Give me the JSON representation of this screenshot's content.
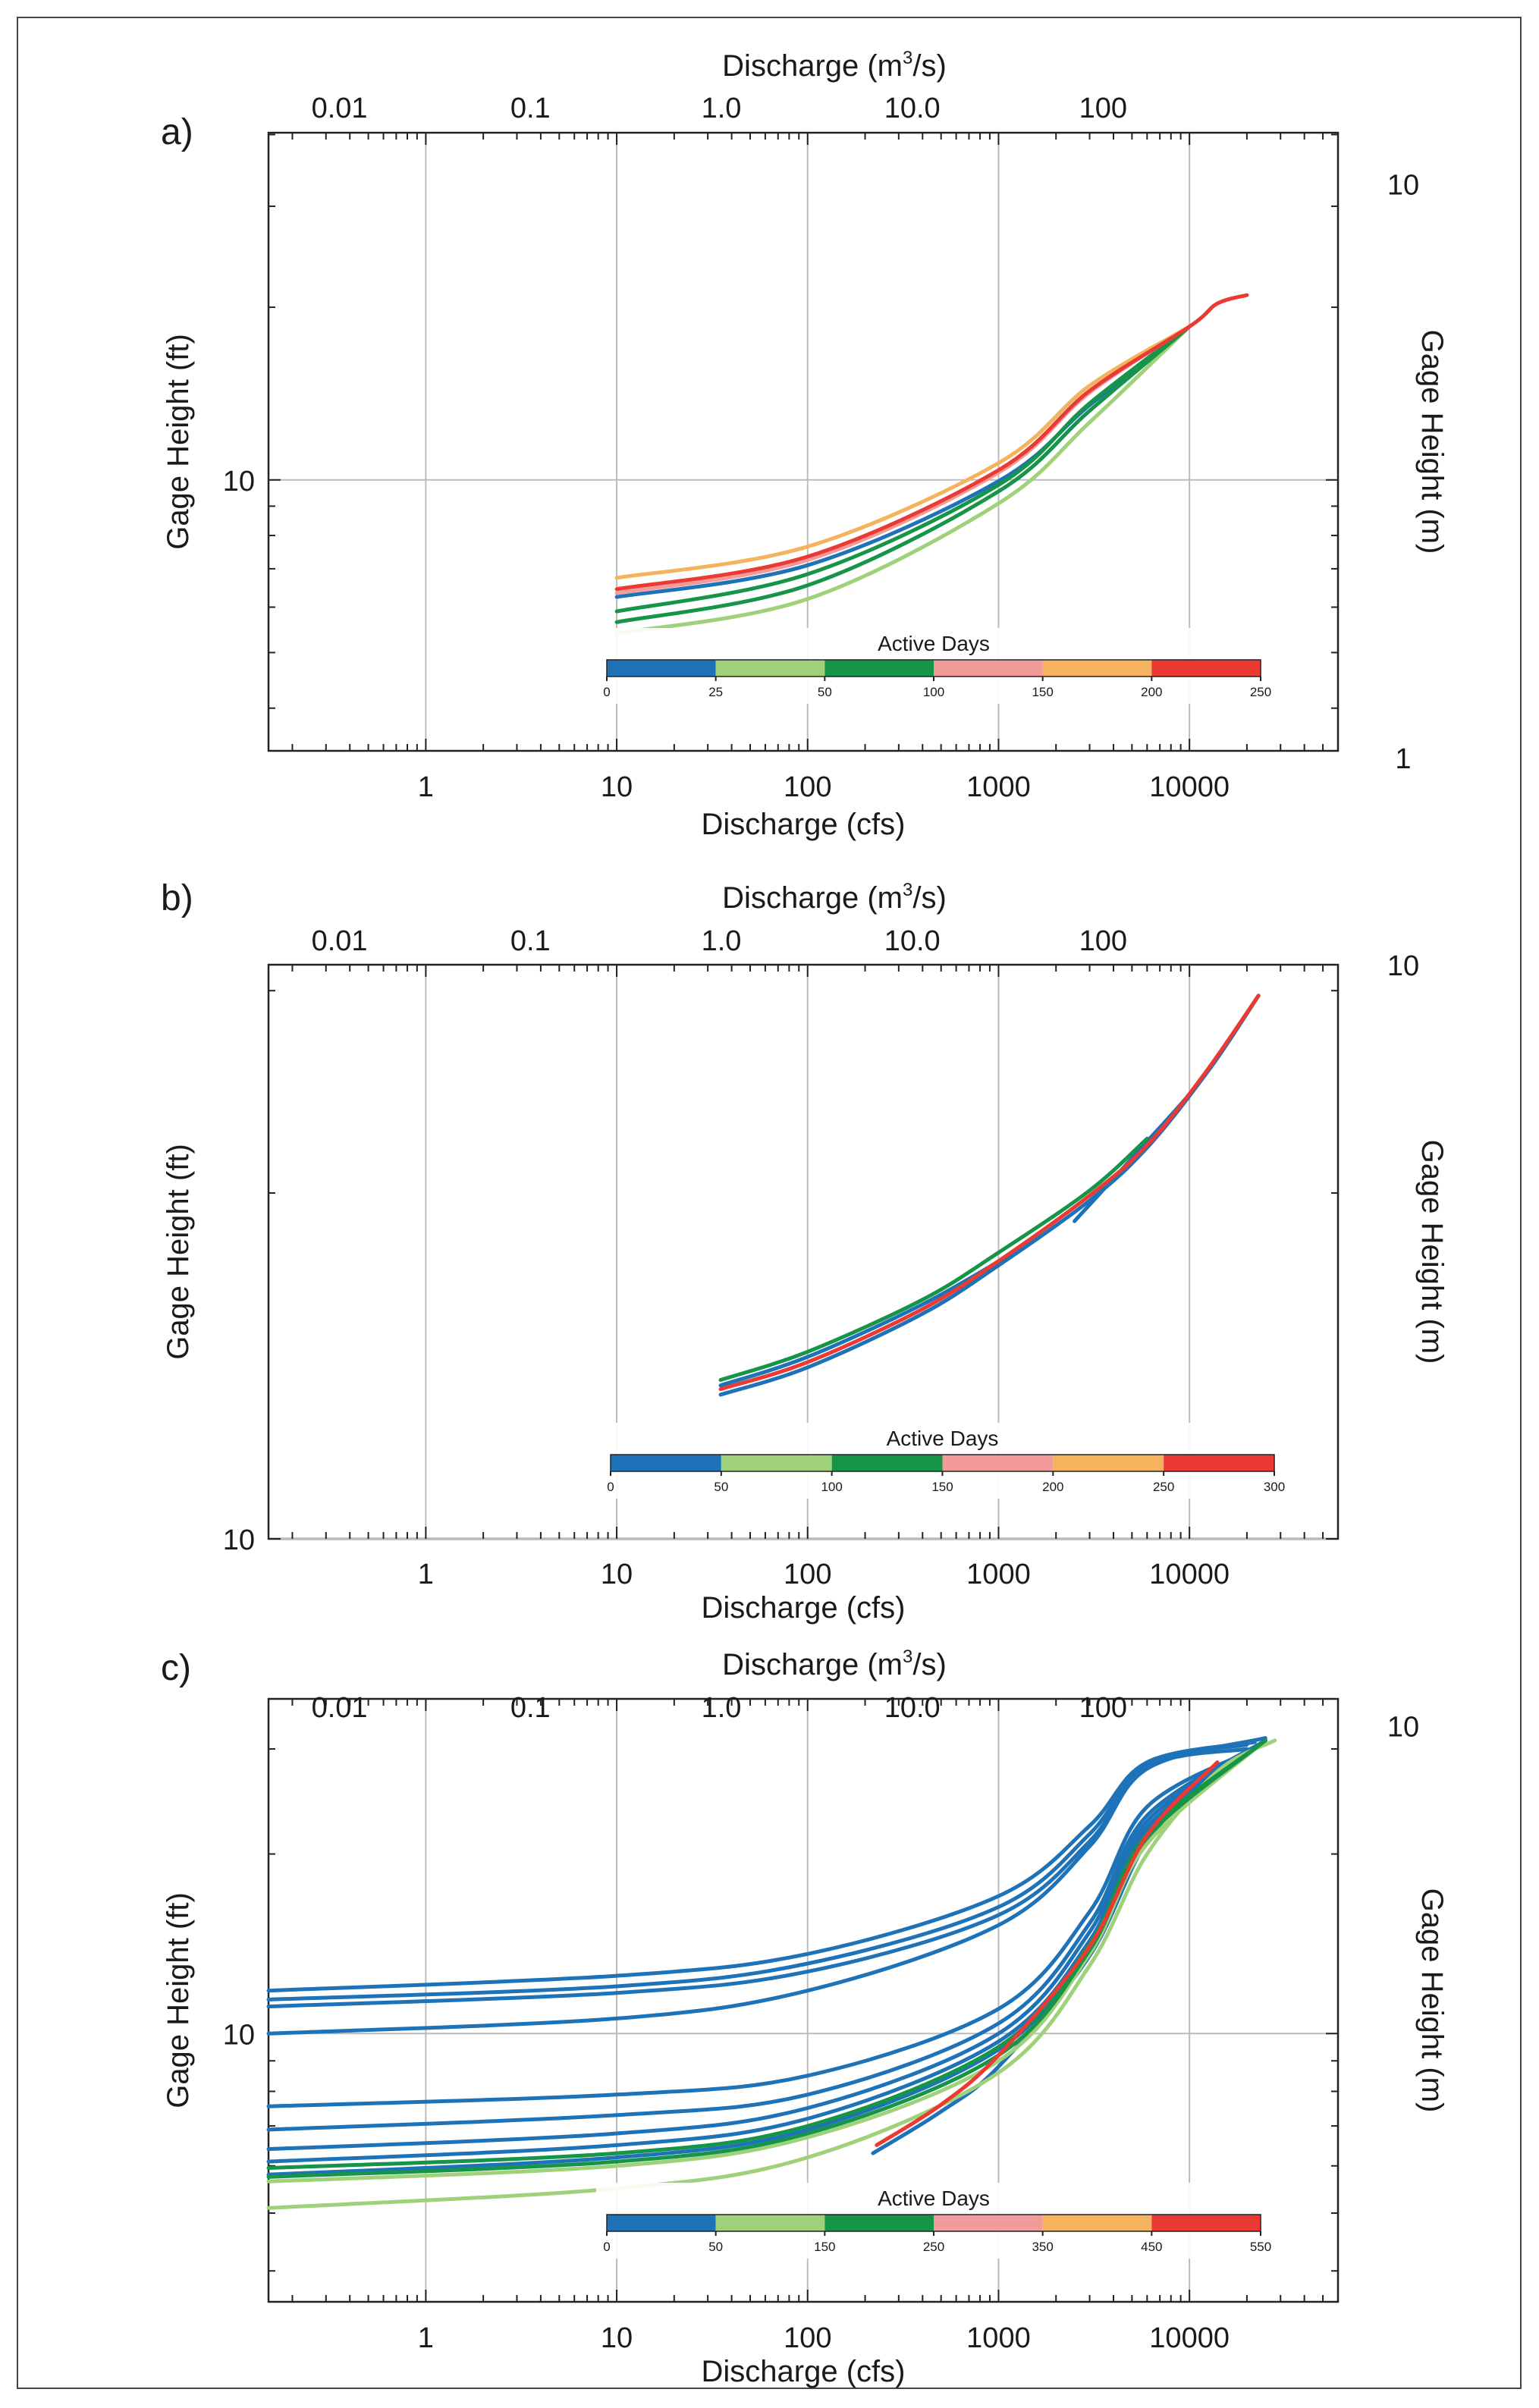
{
  "chart_data": [
    {
      "type": "line",
      "panel_label": "a)",
      "xlabel": "Discharge (cfs)",
      "x2label_base": "Discharge (m",
      "x2label_sup": "3",
      "x2label_tail": "/s)",
      "ylabel": "Gage Height (ft)",
      "y2label": "Gage Height (m)",
      "xscale": "log",
      "yscale": "log",
      "xlim": [
        0.15,
        60000
      ],
      "ylim": [
        3.37,
        40.3
      ],
      "x_ticks": [
        1,
        10,
        100,
        1000,
        10000
      ],
      "x_tick_labels": [
        "1",
        "10",
        "100",
        "1000",
        "10000"
      ],
      "x2_ticks": [
        0.01,
        0.1,
        1.0,
        10.0,
        100
      ],
      "x2_tick_labels": [
        "0.01",
        "0.1",
        "1.0",
        "10.0",
        "100"
      ],
      "y_ticks": [
        10
      ],
      "y_tick_labels": [
        "10"
      ],
      "y2_ticks": [
        1,
        10
      ],
      "y2_tick_labels": [
        "1",
        "10"
      ],
      "colorbar": {
        "title": "Active Days",
        "ticks": [
          "0",
          "25",
          "50",
          "100",
          "150",
          "200",
          "250"
        ],
        "colors": [
          "#1e73b8",
          "#9fd17a",
          "#169448",
          "#f39b9b",
          "#f6b35e",
          "#ea3a33"
        ]
      },
      "series": [
        {
          "name": "0-25 days",
          "color": "#1e73b8",
          "points": [
            [
              10,
              6.25
            ],
            [
              100,
              7.1
            ],
            [
              1000,
              9.95
            ],
            [
              3000,
              13.5
            ],
            [
              10000,
              18.5
            ]
          ]
        },
        {
          "name": "25-50 days",
          "color": "#9fd17a",
          "points": [
            [
              10,
              5.4
            ],
            [
              100,
              6.2
            ],
            [
              1000,
              9.1
            ],
            [
              3000,
              12.6
            ],
            [
              10000,
              18.5
            ]
          ]
        },
        {
          "name": "50-100 days",
          "color": "#169448",
          "points": [
            [
              10,
              5.65
            ],
            [
              100,
              6.55
            ],
            [
              1000,
              9.55
            ],
            [
              3000,
              13.2
            ],
            [
              10000,
              18.5
            ]
          ]
        },
        {
          "name": "50-100 days",
          "color": "#169448",
          "points": [
            [
              10,
              5.9
            ],
            [
              100,
              6.85
            ],
            [
              1000,
              9.8
            ],
            [
              3000,
              13.6
            ],
            [
              10000,
              18.5
            ]
          ]
        },
        {
          "name": "100-150 days",
          "color": "#f39b9b",
          "points": [
            [
              10,
              6.35
            ],
            [
              100,
              7.25
            ],
            [
              1000,
              10.3
            ],
            [
              3000,
              14.2
            ],
            [
              10000,
              18.5
            ]
          ]
        },
        {
          "name": "150-200 days",
          "color": "#f6b35e",
          "points": [
            [
              10,
              6.75
            ],
            [
              100,
              7.65
            ],
            [
              1000,
              10.7
            ],
            [
              3000,
              14.6
            ],
            [
              10000,
              18.5
            ]
          ]
        },
        {
          "name": "200-250 days",
          "color": "#ea3a33",
          "points": [
            [
              10,
              6.45
            ],
            [
              100,
              7.35
            ],
            [
              1000,
              10.4
            ],
            [
              3000,
              14.3
            ],
            [
              10000,
              18.5
            ],
            [
              14000,
              20.3
            ],
            [
              20000,
              21.0
            ]
          ]
        }
      ]
    },
    {
      "type": "line",
      "panel_label": "b)",
      "xlabel": "Discharge (cfs)",
      "x2label_base": "Discharge (m",
      "x2label_sup": "3",
      "x2label_tail": "/s)",
      "ylabel": "Gage Height (ft)",
      "y2label": "Gage Height (m)",
      "xscale": "log",
      "yscale": "log",
      "xlim": [
        0.15,
        60000
      ],
      "ylim": [
        10,
        31.6
      ],
      "x_ticks": [
        1,
        10,
        100,
        1000,
        10000
      ],
      "x_tick_labels": [
        "1",
        "10",
        "100",
        "1000",
        "10000"
      ],
      "x2_ticks": [
        0.01,
        0.1,
        1.0,
        10.0,
        100
      ],
      "x2_tick_labels": [
        "0.01",
        "0.1",
        "1.0",
        "10.0",
        "100"
      ],
      "y_ticks": [
        10
      ],
      "y_tick_labels": [
        "10"
      ],
      "y2_ticks": [
        10
      ],
      "y2_tick_labels": [
        "10"
      ],
      "colorbar": {
        "title": "Active Days",
        "ticks": [
          "0",
          "50",
          "100",
          "150",
          "200",
          "250",
          "300"
        ],
        "colors": [
          "#1e73b8",
          "#9fd17a",
          "#169448",
          "#f39b9b",
          "#f6b35e",
          "#ea3a33"
        ]
      },
      "series": [
        {
          "name": "0-50 days",
          "color": "#1e73b8",
          "points": [
            [
              35,
              13.35
            ],
            [
              100,
              14.1
            ],
            [
              400,
              15.7
            ],
            [
              1000,
              17.3
            ],
            [
              3000,
              19.7
            ],
            [
              6000,
              21.9
            ],
            [
              12000,
              25.3
            ],
            [
              23000,
              29.7
            ]
          ]
        },
        {
          "name": "0-50 days",
          "color": "#1e73b8",
          "points": [
            [
              35,
              13.6
            ],
            [
              100,
              14.4
            ],
            [
              400,
              16.0
            ],
            [
              1100,
              17.6
            ]
          ]
        },
        {
          "name": "0-50 days",
          "color": "#1e73b8",
          "points": [
            [
              2500,
              18.9
            ],
            [
              5200,
              21.6
            ],
            [
              12000,
              25.3
            ],
            [
              23000,
              29.7
            ]
          ]
        },
        {
          "name": "100-150 days",
          "color": "#169448",
          "points": [
            [
              35,
              13.75
            ],
            [
              100,
              14.55
            ],
            [
              400,
              16.15
            ],
            [
              1000,
              17.75
            ],
            [
              3000,
              20.1
            ],
            [
              6000,
              22.3
            ]
          ]
        },
        {
          "name": "250-300 days",
          "color": "#ea3a33",
          "points": [
            [
              35,
              13.5
            ],
            [
              100,
              14.25
            ],
            [
              400,
              15.85
            ],
            [
              1000,
              17.45
            ],
            [
              3000,
              19.9
            ],
            [
              6000,
              22.0
            ],
            [
              12000,
              25.4
            ],
            [
              23000,
              29.7
            ]
          ]
        }
      ]
    },
    {
      "type": "line",
      "panel_label": "c)",
      "xlabel": "Discharge (cfs)",
      "x2label_base": "Discharge (m",
      "x2label_sup": "3",
      "x2label_tail": "/s)",
      "ylabel": "Gage Height (ft)",
      "y2label": "Gage Height (m)",
      "xscale": "log",
      "yscale": "log",
      "xlim": [
        0.15,
        60000
      ],
      "ylim": [
        3.55,
        36.4
      ],
      "x_ticks": [
        1,
        10,
        100,
        1000,
        10000
      ],
      "x_tick_labels": [
        "1",
        "10",
        "100",
        "1000",
        "10000"
      ],
      "x2_ticks": [
        0.01,
        0.1,
        1.0,
        10.0,
        100
      ],
      "x2_tick_labels": [
        "0.01",
        "0.1",
        "1.0",
        "10.0",
        "100"
      ],
      "y_ticks": [
        10
      ],
      "y_tick_labels": [
        "10"
      ],
      "y2_ticks": [
        10
      ],
      "y2_tick_labels": [
        "10"
      ],
      "colorbar": {
        "title": "Active Days",
        "ticks": [
          "0",
          "50",
          "150",
          "250",
          "350",
          "450",
          "550"
        ],
        "colors": [
          "#1e73b8",
          "#9fd17a",
          "#169448",
          "#f39b9b",
          "#f6b35e",
          "#ea3a33"
        ]
      },
      "series": [
        {
          "name": "0-50 days",
          "color": "#1e73b8",
          "points": [
            [
              0.15,
              11.1
            ],
            [
              10,
              11.7
            ],
            [
              100,
              12.7
            ],
            [
              1000,
              15.8
            ],
            [
              3000,
              21.0
            ],
            [
              6000,
              28.0
            ],
            [
              20000,
              30.0
            ]
          ]
        },
        {
          "name": "0-50 days",
          "color": "#1e73b8",
          "points": [
            [
              0.15,
              11.4
            ],
            [
              10,
              12.0
            ],
            [
              100,
              13.1
            ],
            [
              1000,
              16.3
            ],
            [
              3000,
              21.6
            ],
            [
              6000,
              28.3
            ],
            [
              20000,
              30.5
            ]
          ]
        },
        {
          "name": "0-50 days",
          "color": "#1e73b8",
          "points": [
            [
              0.15,
              11.8
            ],
            [
              10,
              12.5
            ],
            [
              100,
              13.6
            ],
            [
              1000,
              17.0
            ],
            [
              3000,
              22.3
            ],
            [
              6000,
              28.5
            ],
            [
              22000,
              30.8
            ]
          ]
        },
        {
          "name": "0-50 days",
          "color": "#1e73b8",
          "points": [
            [
              0.15,
              10.0
            ],
            [
              10,
              10.6
            ],
            [
              100,
              11.8
            ],
            [
              1000,
              15.2
            ],
            [
              3000,
              20.6
            ],
            [
              6000,
              27.8
            ],
            [
              25000,
              31.3
            ]
          ]
        },
        {
          "name": "0-50 days",
          "color": "#1e73b8",
          "points": [
            [
              0.15,
              7.55
            ],
            [
              10,
              7.9
            ],
            [
              100,
              8.5
            ],
            [
              1000,
              11.0
            ],
            [
              3000,
              16.0
            ],
            [
              6000,
              24.0
            ],
            [
              22000,
              30.0
            ]
          ]
        },
        {
          "name": "0-50 days",
          "color": "#1e73b8",
          "points": [
            [
              0.15,
              6.9
            ],
            [
              10,
              7.3
            ],
            [
              100,
              7.9
            ],
            [
              1000,
              10.4
            ],
            [
              3000,
              15.3
            ],
            [
              6000,
              23.2
            ],
            [
              25000,
              31.0
            ]
          ]
        },
        {
          "name": "0-50 days",
          "color": "#1e73b8",
          "points": [
            [
              0.15,
              6.4
            ],
            [
              10,
              6.8
            ],
            [
              100,
              7.5
            ],
            [
              1000,
              10.0
            ],
            [
              3000,
              14.8
            ],
            [
              6000,
              22.7
            ],
            [
              25000,
              31.0
            ]
          ]
        },
        {
          "name": "0-50 days",
          "color": "#1e73b8",
          "points": [
            [
              0.15,
              6.1
            ],
            [
              10,
              6.5
            ],
            [
              100,
              7.2
            ],
            [
              1000,
              9.7
            ],
            [
              3000,
              14.3
            ],
            [
              6000,
              22.2
            ],
            [
              25000,
              31.0
            ]
          ]
        },
        {
          "name": "0-50 days",
          "color": "#1e73b8",
          "points": [
            [
              0.15,
              5.8
            ],
            [
              10,
              6.2
            ],
            [
              100,
              6.9
            ],
            [
              1000,
              9.4
            ],
            [
              3000,
              14.0
            ],
            [
              6000,
              21.8
            ],
            [
              25000,
              31.0
            ]
          ]
        },
        {
          "name": "0-50 days",
          "color": "#1e73b8",
          "points": [
            [
              220,
              6.3
            ],
            [
              500,
              7.4
            ],
            [
              1000,
              8.8
            ],
            [
              3000,
              13.5
            ],
            [
              6000,
              21.0
            ],
            [
              14000,
              28.0
            ]
          ]
        },
        {
          "name": "50-150 days",
          "color": "#9fd17a",
          "points": [
            [
              0.15,
              5.1
            ],
            [
              10,
              5.5
            ],
            [
              100,
              6.2
            ],
            [
              1000,
              8.6
            ],
            [
              3000,
              13.0
            ],
            [
              6000,
              20.0
            ],
            [
              14000,
              27.5
            ],
            [
              28000,
              31.0
            ]
          ]
        },
        {
          "name": "50-150 days",
          "color": "#9fd17a",
          "points": [
            [
              0.15,
              5.65
            ],
            [
              10,
              6.0
            ],
            [
              100,
              6.7
            ],
            [
              1000,
              9.0
            ],
            [
              3000,
              13.6
            ],
            [
              6000,
              20.8
            ],
            [
              25000,
              31.0
            ]
          ]
        },
        {
          "name": "150-250 days",
          "color": "#169448",
          "points": [
            [
              0.15,
              5.75
            ],
            [
              10,
              6.1
            ],
            [
              100,
              6.8
            ],
            [
              1000,
              9.2
            ],
            [
              3000,
              13.8
            ],
            [
              6000,
              21.3
            ],
            [
              25000,
              31.0
            ]
          ]
        },
        {
          "name": "150-250 days",
          "color": "#169448",
          "points": [
            [
              0.15,
              5.95
            ],
            [
              10,
              6.3
            ],
            [
              100,
              7.0
            ],
            [
              1000,
              9.5
            ],
            [
              3000,
              14.1
            ],
            [
              6000,
              21.6
            ],
            [
              25000,
              31.0
            ]
          ]
        },
        {
          "name": "450-550 days",
          "color": "#ea3a33",
          "points": [
            [
              230,
              6.5
            ],
            [
              500,
              7.6
            ],
            [
              1000,
              9.2
            ],
            [
              3000,
              14.0
            ],
            [
              6000,
              21.5
            ],
            [
              14000,
              28.5
            ]
          ]
        }
      ]
    }
  ]
}
